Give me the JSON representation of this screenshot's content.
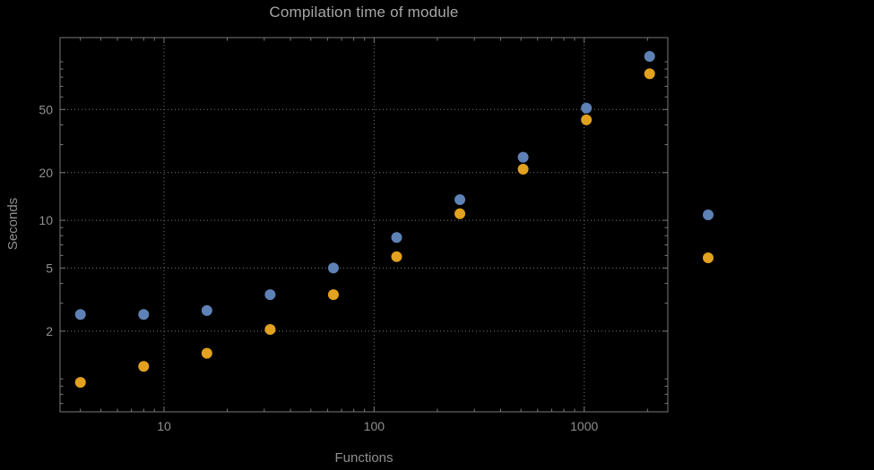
{
  "title": "Compilation time of module",
  "xlabel": "Functions",
  "ylabel": "Seconds",
  "colors": {
    "background": "#000000",
    "frame": "#787878",
    "grid": "#787878",
    "tick_text": "#8f8f91",
    "title_text": "#a6a6a8",
    "series_blue": "#5e82b5",
    "series_orange": "#e2a11f"
  },
  "chart_data": {
    "type": "scatter",
    "title": "Compilation time of module",
    "xlabel": "Functions",
    "ylabel": "Seconds",
    "x_scale": "log",
    "y_scale": "log",
    "grid": true,
    "legend_position": "right-outside",
    "xlim": [
      3.2,
      2500
    ],
    "ylim": [
      0.62,
      142
    ],
    "x_ticks": [
      10,
      100,
      1000
    ],
    "y_ticks": [
      2,
      5,
      10,
      20,
      50
    ],
    "x": [
      4,
      8,
      16,
      32,
      64,
      128,
      256,
      512,
      1024,
      2048
    ],
    "series": [
      {
        "name": "series-blue",
        "color": "#5e82b5",
        "values": [
          2.55,
          2.55,
          2.7,
          3.4,
          5.0,
          7.8,
          13.5,
          25,
          51,
          108
        ]
      },
      {
        "name": "series-orange",
        "color": "#e2a11f",
        "values": [
          0.95,
          1.2,
          1.45,
          2.05,
          3.4,
          5.9,
          11,
          21,
          43,
          84
        ]
      }
    ],
    "legend_markers": [
      {
        "name": "legend-marker-blue",
        "color": "#5e82b5"
      },
      {
        "name": "legend-marker-orange",
        "color": "#e2a11f"
      }
    ]
  }
}
